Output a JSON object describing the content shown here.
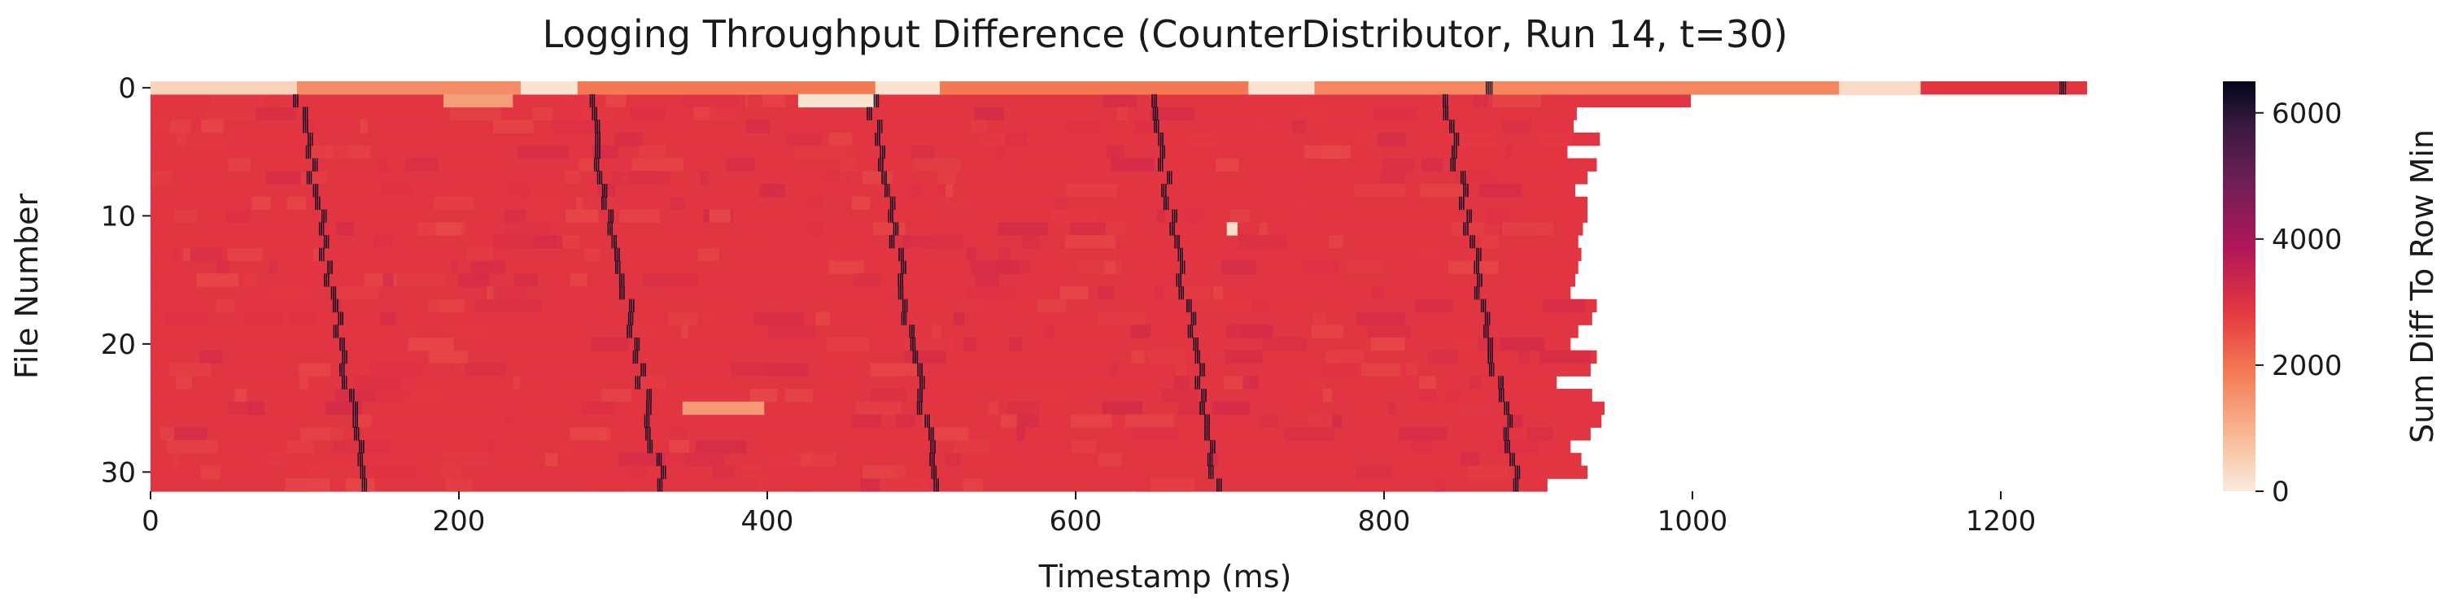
{
  "chart_data": {
    "type": "heatmap",
    "title": "Logging Throughput Difference (CounterDistributor, Run 14, t=30)",
    "xlabel": "Timestamp (ms)",
    "ylabel": "File Number",
    "colorbar_label": "Sum Diff To Row Min",
    "xlim": [
      0,
      1300
    ],
    "ylim": [
      0,
      31
    ],
    "x_ticks": [
      0,
      200,
      400,
      600,
      800,
      1000,
      1200
    ],
    "y_ticks": [
      0,
      10,
      20,
      30
    ],
    "colorbar_ticks": [
      0,
      2000,
      4000,
      6000
    ],
    "colorbar_range": [
      0,
      6500
    ],
    "rows": 32,
    "typical_value": 2900,
    "row_end_ms": [
      1256,
      999,
      925,
      923,
      940,
      919,
      938,
      932,
      924,
      932,
      932,
      929,
      926,
      928,
      926,
      924,
      921,
      938,
      935,
      926,
      921,
      938,
      934,
      912,
      935,
      943,
      941,
      934,
      921,
      928,
      932,
      906
    ],
    "low_value_blocks": [
      {
        "row": 0,
        "x_start": 0,
        "x_end": 95,
        "value": 400
      },
      {
        "row": 0,
        "x_start": 95,
        "x_end": 240,
        "value": 1600
      },
      {
        "row": 0,
        "x_start": 240,
        "x_end": 277,
        "value": 150
      },
      {
        "row": 0,
        "x_start": 277,
        "x_end": 470,
        "value": 1900
      },
      {
        "row": 0,
        "x_start": 470,
        "x_end": 512,
        "value": 150
      },
      {
        "row": 0,
        "x_start": 512,
        "x_end": 712,
        "value": 1900
      },
      {
        "row": 0,
        "x_start": 712,
        "x_end": 755,
        "value": 150
      },
      {
        "row": 0,
        "x_start": 755,
        "x_end": 1095,
        "value": 1700
      },
      {
        "row": 0,
        "x_start": 1095,
        "x_end": 1148,
        "value": 300
      },
      {
        "row": 1,
        "x_start": 190,
        "x_end": 235,
        "value": 1300
      },
      {
        "row": 1,
        "x_start": 420,
        "x_end": 470,
        "value": 150
      },
      {
        "row": 11,
        "x_start": 698,
        "x_end": 705,
        "value": 200
      },
      {
        "row": 25,
        "x_start": 345,
        "x_end": 398,
        "value": 1400
      }
    ],
    "spike_bands": [
      {
        "rows": [
          1,
          31
        ],
        "x_at_row1": 95,
        "x_at_row31": 138,
        "value": 6300
      },
      {
        "rows": [
          1,
          31
        ],
        "x_at_row1": 282,
        "x_at_row31": 330,
        "value": 6300
      },
      {
        "rows": [
          1,
          31
        ],
        "x_at_row1": 466,
        "x_at_row31": 508,
        "value": 6300
      },
      {
        "rows": [
          1,
          31
        ],
        "x_at_row1": 648,
        "x_at_row31": 690,
        "value": 6300
      },
      {
        "rows": [
          1,
          31
        ],
        "x_at_row1": 838,
        "x_at_row31": 885,
        "value": 6300
      }
    ],
    "row0_spikes_ms": [
      866,
      1238
    ]
  }
}
